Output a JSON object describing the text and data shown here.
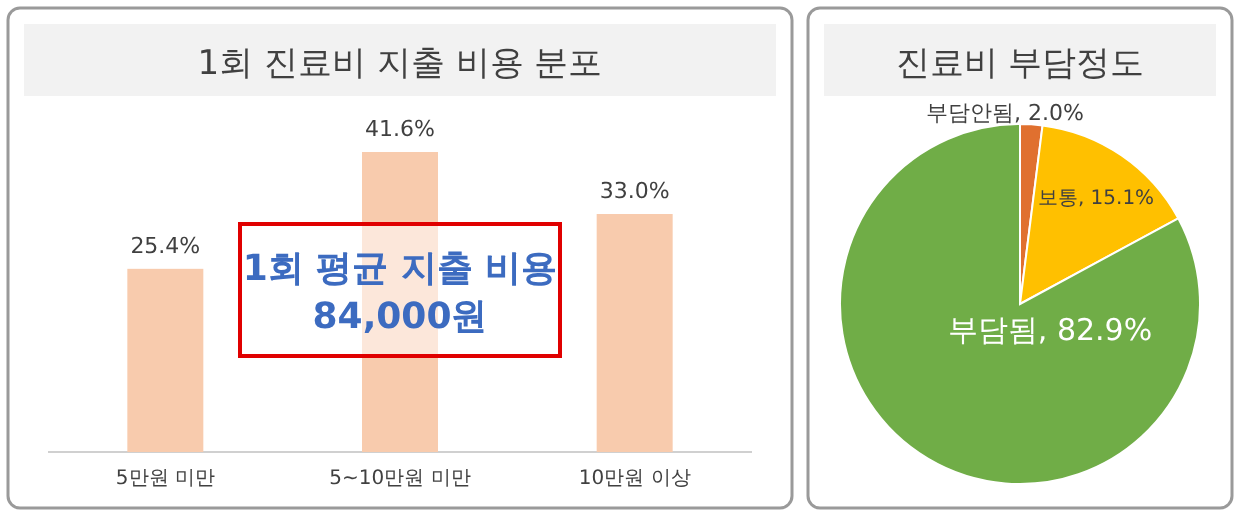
{
  "chart_data": [
    {
      "type": "bar",
      "title": "1회 진료비 지출 비용 분포",
      "categories": [
        "5만원 미만",
        "5~10만원 미만",
        "10만원 이상"
      ],
      "values": [
        25.4,
        41.6,
        33.0
      ],
      "value_labels": [
        "25.4%",
        "41.6%",
        "33.0%"
      ],
      "color": "#f8cbad",
      "annotations": [
        "1회 평균 지출 비용",
        "84,000원"
      ]
    },
    {
      "type": "pie",
      "title": "진료비 부담정도",
      "categories": [
        "부담안됨",
        "보통",
        "부담됨"
      ],
      "values": [
        2.0,
        15.1,
        82.9
      ],
      "value_labels": [
        "2.0%",
        "15.1%",
        "82.9%"
      ],
      "colors": [
        "#e0702f",
        "#ffc000",
        "#70ad47"
      ]
    }
  ]
}
